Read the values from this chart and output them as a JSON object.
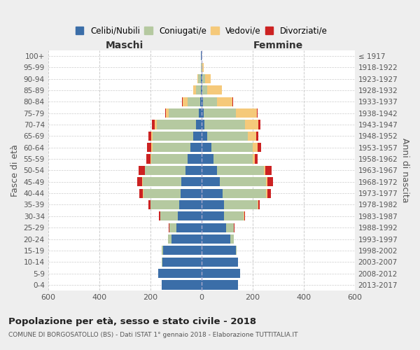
{
  "age_groups": [
    "0-4",
    "5-9",
    "10-14",
    "15-19",
    "20-24",
    "25-29",
    "30-34",
    "35-39",
    "40-44",
    "45-49",
    "50-54",
    "55-59",
    "60-64",
    "65-69",
    "70-74",
    "75-79",
    "80-84",
    "85-89",
    "90-94",
    "95-99",
    "100+"
  ],
  "birth_years": [
    "2013-2017",
    "2008-2012",
    "2003-2007",
    "1998-2002",
    "1993-1997",
    "1988-1992",
    "1983-1987",
    "1978-1982",
    "1973-1977",
    "1968-1972",
    "1963-1967",
    "1958-1962",
    "1953-1957",
    "1948-1952",
    "1943-1947",
    "1938-1942",
    "1933-1937",
    "1928-1932",
    "1923-1927",
    "1918-1922",
    "≤ 1917"
  ],
  "colors": {
    "celibi": "#3b6ea8",
    "coniugati": "#b5c9a0",
    "vedovi": "#f5c97a",
    "divorziati": "#cc2222"
  },
  "maschi_celibi": [
    155,
    168,
    152,
    150,
    118,
    98,
    92,
    88,
    82,
    78,
    62,
    55,
    42,
    32,
    22,
    10,
    5,
    3,
    2,
    0,
    1
  ],
  "maschi_coniugati": [
    0,
    0,
    2,
    4,
    12,
    28,
    68,
    110,
    145,
    152,
    158,
    142,
    150,
    160,
    152,
    118,
    50,
    18,
    10,
    2,
    0
  ],
  "maschi_vedovi": [
    0,
    0,
    0,
    0,
    0,
    0,
    1,
    2,
    2,
    2,
    2,
    3,
    5,
    5,
    10,
    10,
    18,
    10,
    4,
    1,
    0
  ],
  "maschi_divorziati": [
    0,
    0,
    0,
    0,
    1,
    2,
    5,
    8,
    15,
    20,
    25,
    15,
    15,
    10,
    10,
    3,
    2,
    0,
    0,
    0,
    0
  ],
  "femmine_celibi": [
    142,
    152,
    142,
    135,
    112,
    98,
    88,
    88,
    82,
    72,
    62,
    48,
    38,
    22,
    12,
    8,
    5,
    4,
    3,
    1,
    0
  ],
  "femmine_coniugati": [
    0,
    0,
    2,
    3,
    14,
    28,
    78,
    132,
    172,
    182,
    182,
    152,
    162,
    160,
    158,
    128,
    55,
    20,
    12,
    3,
    0
  ],
  "femmine_vedovi": [
    0,
    0,
    0,
    0,
    1,
    1,
    2,
    2,
    3,
    5,
    5,
    10,
    20,
    32,
    52,
    80,
    62,
    55,
    22,
    5,
    1
  ],
  "femmine_divorziati": [
    0,
    0,
    0,
    0,
    1,
    2,
    3,
    5,
    15,
    20,
    25,
    10,
    14,
    8,
    8,
    3,
    2,
    0,
    0,
    0,
    0
  ],
  "xlim": 600,
  "xticks": [
    -600,
    -400,
    -200,
    0,
    200,
    400,
    600
  ],
  "title": "Popolazione per età, sesso e stato civile - 2018",
  "subtitle": "COMUNE DI BORGOSATOLLO (BS) - Dati ISTAT 1° gennaio 2018 - Elaborazione TUTTITALIA.IT",
  "ylabel_left": "Fasce di età",
  "ylabel_right": "Anni di nascita",
  "label_maschi": "Maschi",
  "label_femmine": "Femmine",
  "legend_labels": [
    "Celibi/Nubili",
    "Coniugati/e",
    "Vedovi/e",
    "Divorziati/e"
  ],
  "bg_color": "#eeeeee",
  "plot_bg": "#ffffff"
}
